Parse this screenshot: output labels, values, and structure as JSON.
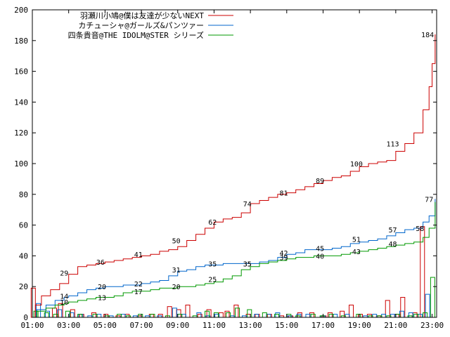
{
  "chart_data": {
    "type": "line",
    "ylim": [
      0,
      200
    ],
    "yticks": [
      0,
      20,
      40,
      60,
      80,
      100,
      120,
      140,
      160,
      180,
      200
    ],
    "xlim": [
      "01:00",
      "23:15"
    ],
    "xticks": [
      "01:00",
      "03:00",
      "05:00",
      "07:00",
      "09:00",
      "11:00",
      "13:00",
      "15:00",
      "17:00",
      "19:00",
      "21:00",
      "23:00"
    ],
    "grid": false,
    "legend_position": "top-left",
    "series": [
      {
        "name": "羽瀬川小鳩@僕は友達が少ないNEXT",
        "color": "#cc0000",
        "x": [
          "01:00",
          "01:10",
          "01:30",
          "02:00",
          "02:30",
          "03:00",
          "03:30",
          "04:00",
          "04:30",
          "05:00",
          "05:30",
          "06:00",
          "06:30",
          "07:00",
          "07:30",
          "08:00",
          "08:30",
          "09:00",
          "09:30",
          "10:00",
          "10:30",
          "11:00",
          "11:30",
          "12:00",
          "12:30",
          "13:00",
          "13:30",
          "14:00",
          "14:30",
          "15:00",
          "15:30",
          "16:00",
          "16:30",
          "17:00",
          "17:30",
          "18:00",
          "18:30",
          "19:00",
          "19:30",
          "20:00",
          "20:30",
          "21:00",
          "21:30",
          "22:00",
          "22:30",
          "22:50",
          "23:00",
          "23:10"
        ],
        "y": [
          0,
          8,
          14,
          18,
          22,
          28,
          33,
          34,
          35,
          36,
          37,
          38,
          39,
          40,
          41,
          43,
          44,
          46,
          50,
          54,
          58,
          62,
          64,
          65,
          68,
          74,
          76,
          78,
          80,
          81,
          83,
          85,
          87,
          89,
          91,
          92,
          95,
          98,
          100,
          101,
          102,
          108,
          113,
          120,
          135,
          150,
          165,
          184
        ],
        "labels": [
          {
            "x": "02:45",
            "y": 29,
            "text": "29"
          },
          {
            "x": "04:45",
            "y": 36,
            "text": "36"
          },
          {
            "x": "06:50",
            "y": 41,
            "text": "41"
          },
          {
            "x": "08:55",
            "y": 50,
            "text": "50"
          },
          {
            "x": "10:55",
            "y": 62,
            "text": "62"
          },
          {
            "x": "12:50",
            "y": 74,
            "text": "74"
          },
          {
            "x": "14:50",
            "y": 81,
            "text": "81"
          },
          {
            "x": "16:50",
            "y": 89,
            "text": "89"
          },
          {
            "x": "18:50",
            "y": 100,
            "text": "100"
          },
          {
            "x": "20:50",
            "y": 113,
            "text": "113"
          },
          {
            "x": "22:45",
            "y": 184,
            "text": "184"
          }
        ]
      },
      {
        "name": "カチューシャ@ガールズ&パンツァー",
        "color": "#0066cc",
        "x": [
          "01:00",
          "01:15",
          "01:45",
          "02:15",
          "02:45",
          "03:00",
          "03:30",
          "04:00",
          "04:30",
          "05:00",
          "05:30",
          "06:00",
          "06:30",
          "07:00",
          "07:30",
          "08:00",
          "08:30",
          "09:00",
          "09:30",
          "10:00",
          "10:30",
          "11:00",
          "11:30",
          "12:00",
          "12:30",
          "13:00",
          "13:30",
          "14:00",
          "14:30",
          "15:00",
          "15:30",
          "16:00",
          "16:30",
          "17:00",
          "17:30",
          "18:00",
          "18:30",
          "19:00",
          "19:30",
          "20:00",
          "20:30",
          "21:00",
          "21:30",
          "22:00",
          "22:30",
          "22:50",
          "23:10"
        ],
        "y": [
          0,
          5,
          8,
          11,
          13,
          14,
          16,
          18,
          19,
          20,
          20,
          21,
          21,
          22,
          23,
          24,
          27,
          30,
          31,
          33,
          34,
          34,
          35,
          35,
          35,
          35,
          36,
          37,
          39,
          41,
          42,
          44,
          44,
          44,
          45,
          46,
          48,
          49,
          50,
          51,
          53,
          55,
          57,
          58,
          62,
          66,
          77
        ],
        "labels": [
          {
            "x": "02:45",
            "y": 14,
            "text": "14"
          },
          {
            "x": "04:50",
            "y": 20,
            "text": "20"
          },
          {
            "x": "06:50",
            "y": 22,
            "text": "22"
          },
          {
            "x": "08:55",
            "y": 31,
            "text": "31"
          },
          {
            "x": "10:55",
            "y": 35,
            "text": "35"
          },
          {
            "x": "12:50",
            "y": 35,
            "text": "35"
          },
          {
            "x": "14:50",
            "y": 42,
            "text": "42"
          },
          {
            "x": "16:50",
            "y": 45,
            "text": "45"
          },
          {
            "x": "18:50",
            "y": 51,
            "text": "51"
          },
          {
            "x": "20:50",
            "y": 57,
            "text": "57"
          },
          {
            "x": "22:50",
            "y": 77,
            "text": "77"
          }
        ]
      },
      {
        "name": "四条貴音@THE IDOLM@STER シリーズ",
        "color": "#009900",
        "x": [
          "01:00",
          "01:15",
          "01:45",
          "02:15",
          "02:45",
          "03:00",
          "03:30",
          "04:00",
          "04:30",
          "05:00",
          "05:30",
          "06:00",
          "06:30",
          "07:00",
          "07:30",
          "08:00",
          "08:30",
          "09:00",
          "09:30",
          "10:00",
          "10:30",
          "11:00",
          "11:30",
          "12:00",
          "12:30",
          "13:00",
          "13:30",
          "14:00",
          "14:30",
          "15:00",
          "15:30",
          "16:00",
          "16:30",
          "17:00",
          "17:30",
          "18:00",
          "18:30",
          "19:00",
          "19:30",
          "20:00",
          "20:30",
          "21:00",
          "21:30",
          "22:00",
          "22:30",
          "22:50",
          "23:10"
        ],
        "y": [
          0,
          4,
          6,
          8,
          9,
          10,
          11,
          12,
          13,
          13,
          14,
          16,
          17,
          17,
          18,
          19,
          19,
          20,
          20,
          21,
          22,
          23,
          25,
          27,
          31,
          33,
          35,
          36,
          37,
          38,
          39,
          39,
          40,
          40,
          40,
          41,
          42,
          43,
          44,
          45,
          46,
          47,
          48,
          49,
          52,
          58,
          75
        ],
        "labels": [
          {
            "x": "02:45",
            "y": 10,
            "text": "10"
          },
          {
            "x": "04:50",
            "y": 13,
            "text": "13"
          },
          {
            "x": "06:50",
            "y": 17,
            "text": "17"
          },
          {
            "x": "08:55",
            "y": 20,
            "text": "20"
          },
          {
            "x": "10:55",
            "y": 25,
            "text": "25"
          },
          {
            "x": "12:50",
            "y": 35,
            "text": "35"
          },
          {
            "x": "14:50",
            "y": 39,
            "text": "39"
          },
          {
            "x": "16:50",
            "y": 40,
            "text": "40"
          },
          {
            "x": "18:50",
            "y": 43,
            "text": "43"
          },
          {
            "x": "20:50",
            "y": 48,
            "text": "48"
          },
          {
            "x": "22:20",
            "y": 58,
            "text": "58"
          }
        ]
      }
    ],
    "bars": [
      {
        "series": 0,
        "values": [
          [
            "01:10",
            19
          ],
          [
            "02:20",
            6
          ],
          [
            "02:40",
            9
          ],
          [
            "03:20",
            5
          ],
          [
            "03:50",
            2
          ],
          [
            "04:30",
            3
          ],
          [
            "05:10",
            2
          ],
          [
            "05:50",
            1
          ],
          [
            "06:20",
            2
          ],
          [
            "07:00",
            1
          ],
          [
            "07:40",
            2
          ],
          [
            "08:10",
            2
          ],
          [
            "08:40",
            7
          ],
          [
            "09:10",
            5
          ],
          [
            "09:40",
            8
          ],
          [
            "10:20",
            2
          ],
          [
            "10:50",
            5
          ],
          [
            "11:30",
            3
          ],
          [
            "11:50",
            4
          ],
          [
            "12:20",
            8
          ],
          [
            "13:00",
            2
          ],
          [
            "13:30",
            2
          ],
          [
            "14:10",
            2
          ],
          [
            "14:50",
            1
          ],
          [
            "15:20",
            1
          ],
          [
            "15:50",
            3
          ],
          [
            "16:30",
            3
          ],
          [
            "17:10",
            1
          ],
          [
            "17:30",
            3
          ],
          [
            "18:10",
            4
          ],
          [
            "18:40",
            8
          ],
          [
            "19:10",
            2
          ],
          [
            "19:40",
            2
          ],
          [
            "20:10",
            1
          ],
          [
            "20:40",
            11
          ],
          [
            "21:10",
            2
          ],
          [
            "21:30",
            13
          ],
          [
            "22:10",
            3
          ],
          [
            "22:35",
            59
          ]
        ]
      },
      {
        "series": 1,
        "values": [
          [
            "01:20",
            9
          ],
          [
            "01:50",
            4
          ],
          [
            "02:30",
            5
          ],
          [
            "03:10",
            3
          ],
          [
            "03:40",
            2
          ],
          [
            "04:10",
            1
          ],
          [
            "04:40",
            2
          ],
          [
            "05:20",
            1
          ],
          [
            "06:00",
            2
          ],
          [
            "06:40",
            1
          ],
          [
            "07:20",
            1
          ],
          [
            "08:00",
            1
          ],
          [
            "08:50",
            6
          ],
          [
            "09:20",
            2
          ],
          [
            "10:10",
            3
          ],
          [
            "10:40",
            1
          ],
          [
            "11:10",
            2
          ],
          [
            "12:00",
            1
          ],
          [
            "12:40",
            1
          ],
          [
            "13:20",
            2
          ],
          [
            "14:00",
            2
          ],
          [
            "14:30",
            3
          ],
          [
            "15:10",
            1
          ],
          [
            "15:40",
            2
          ],
          [
            "16:10",
            2
          ],
          [
            "17:00",
            1
          ],
          [
            "17:40",
            2
          ],
          [
            "18:20",
            2
          ],
          [
            "19:20",
            1
          ],
          [
            "19:50",
            2
          ],
          [
            "20:20",
            2
          ],
          [
            "20:50",
            2
          ],
          [
            "21:20",
            4
          ],
          [
            "21:50",
            3
          ],
          [
            "22:20",
            2
          ],
          [
            "22:45",
            15
          ]
        ]
      },
      {
        "series": 2,
        "values": [
          [
            "01:05",
            4
          ],
          [
            "01:40",
            3
          ],
          [
            "02:10",
            2
          ],
          [
            "02:50",
            4
          ],
          [
            "03:30",
            2
          ],
          [
            "04:20",
            2
          ],
          [
            "05:00",
            1
          ],
          [
            "05:40",
            2
          ],
          [
            "06:10",
            1
          ],
          [
            "06:50",
            2
          ],
          [
            "07:30",
            2
          ],
          [
            "08:20",
            1
          ],
          [
            "09:00",
            2
          ],
          [
            "09:50",
            1
          ],
          [
            "10:30",
            4
          ],
          [
            "11:00",
            3
          ],
          [
            "11:40",
            3
          ],
          [
            "12:10",
            6
          ],
          [
            "12:50",
            5
          ],
          [
            "13:40",
            3
          ],
          [
            "14:20",
            2
          ],
          [
            "15:00",
            2
          ],
          [
            "15:30",
            1
          ],
          [
            "16:20",
            2
          ],
          [
            "16:50",
            1
          ],
          [
            "17:20",
            2
          ],
          [
            "18:00",
            1
          ],
          [
            "18:50",
            2
          ],
          [
            "19:30",
            1
          ],
          [
            "20:00",
            1
          ],
          [
            "20:30",
            1
          ],
          [
            "21:00",
            2
          ],
          [
            "21:40",
            1
          ],
          [
            "22:00",
            2
          ],
          [
            "22:30",
            3
          ],
          [
            "22:55",
            26
          ]
        ]
      }
    ]
  }
}
